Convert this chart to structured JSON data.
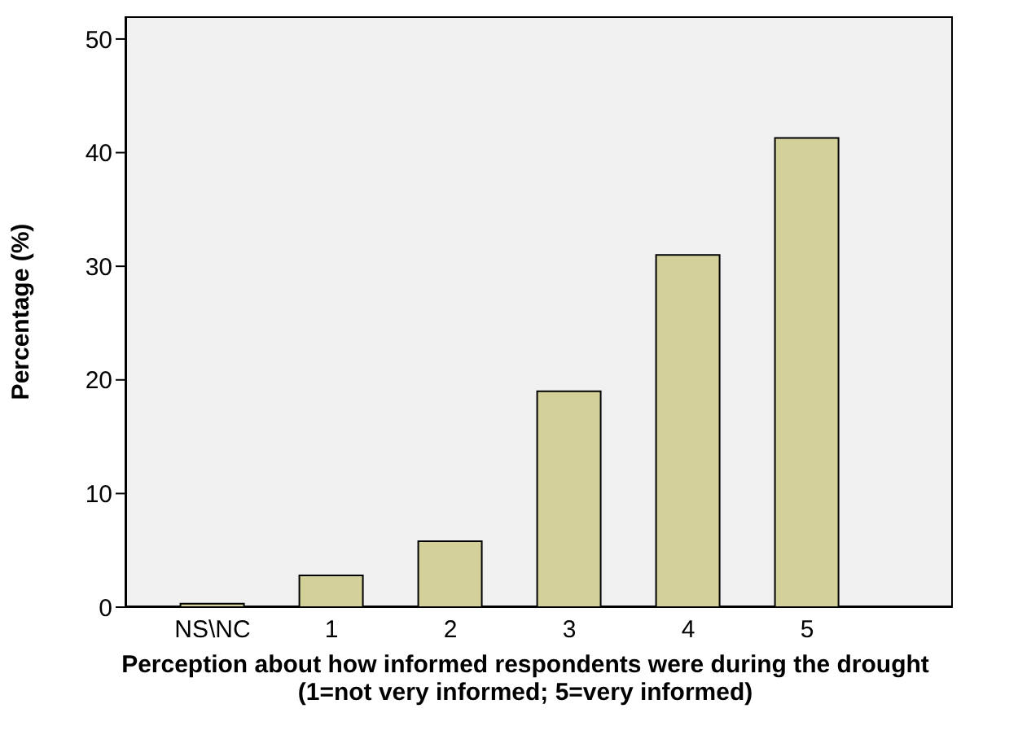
{
  "chart_data": {
    "type": "bar",
    "xlabel": "Perception about how informed respondents were during the drought\n(1=not very informed; 5=very informed)",
    "ylabel": "Percentage (%)",
    "categories": [
      "NS\\NC",
      "1",
      "2",
      "3",
      "4",
      "5"
    ],
    "values": [
      0.3,
      2.8,
      5.8,
      19.0,
      31.0,
      41.3
    ],
    "color": "#d3d199",
    "ylim": [
      0,
      52
    ],
    "yticks": [
      0,
      10,
      20,
      30,
      40,
      50
    ]
  }
}
